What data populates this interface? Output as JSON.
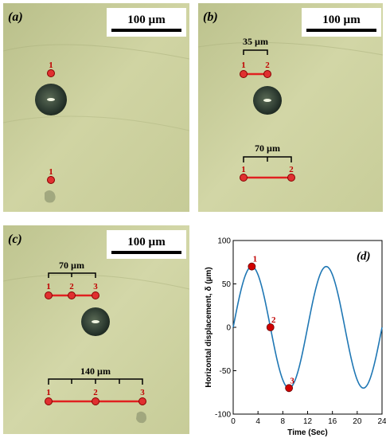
{
  "panels": {
    "a": {
      "label": "(a)",
      "scale_bar": "100 µm",
      "points": [
        "1",
        "1"
      ]
    },
    "b": {
      "label": "(b)",
      "scale_bar": "100 µm",
      "upper_bracket": "35 µm",
      "upper_points": [
        "1",
        "2"
      ],
      "lower_bracket": "70 µm",
      "lower_points": [
        "1",
        "2"
      ]
    },
    "c": {
      "label": "(c)",
      "scale_bar": "100 µm",
      "upper_bracket": "70 µm",
      "upper_points": [
        "1",
        "2",
        "3"
      ],
      "lower_bracket": "140 µm",
      "lower_points": [
        "1",
        "2",
        "3"
      ]
    },
    "d": {
      "label": "(d)"
    }
  },
  "chart_data": {
    "type": "line",
    "xlabel": "Time (Sec)",
    "ylabel": "Horizontal displacement, δ (µm)",
    "xlim": [
      0,
      24
    ],
    "ylim": [
      -100,
      100
    ],
    "xticks": [
      "0",
      "4",
      "8",
      "12",
      "16",
      "20",
      "24"
    ],
    "yticks": [
      "100",
      "50",
      "0",
      "-50",
      "-100"
    ],
    "series": [
      {
        "amplitude": 70,
        "period": 12,
        "x": [
          0,
          0.5,
          1,
          1.5,
          2,
          2.5,
          3,
          3.5,
          4,
          4.5,
          5,
          5.5,
          6,
          6.5,
          7,
          7.5,
          8,
          8.5,
          9,
          9.5,
          10,
          10.5,
          11,
          11.5,
          12,
          12.5,
          13,
          13.5,
          14,
          14.5,
          15,
          15.5,
          16,
          16.5,
          17,
          17.5,
          18,
          18.5,
          19,
          19.5,
          20,
          20.5,
          21,
          21.5,
          22,
          22.5,
          23,
          23.5,
          24
        ],
        "y": [
          0,
          18.1,
          35,
          49.5,
          60.6,
          67.6,
          70,
          67.6,
          60.6,
          49.5,
          35,
          18.1,
          0,
          -18.1,
          -35,
          -49.5,
          -60.6,
          -67.6,
          -70,
          -67.6,
          -60.6,
          -49.5,
          -35,
          -18.1,
          0,
          18.1,
          35,
          49.5,
          60.6,
          67.6,
          70,
          67.6,
          60.6,
          49.5,
          35,
          18.1,
          0,
          -18.1,
          -35,
          -49.5,
          -60.6,
          -67.6,
          -70,
          -67.6,
          -60.6,
          -49.5,
          -35,
          -18.1,
          0
        ]
      }
    ],
    "markers": [
      {
        "label": "1",
        "x": 3,
        "y": 70
      },
      {
        "label": "2",
        "x": 6,
        "y": 0
      },
      {
        "label": "3",
        "x": 9,
        "y": -70
      }
    ],
    "colors": {
      "line": "#1f77b4",
      "marker": "#d00000"
    }
  }
}
